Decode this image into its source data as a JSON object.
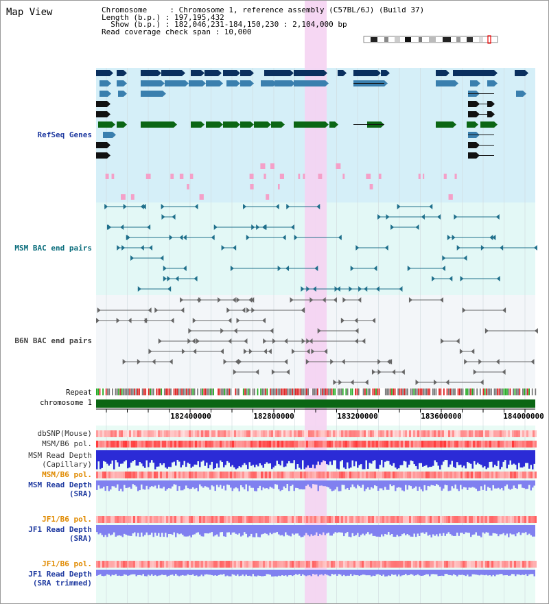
{
  "page": {
    "title": "Map View"
  },
  "info": {
    "chromosome_line": "Chromosome     : Chromosome 1, reference assembly (C57BL/6J) (Build 37)",
    "length_line": "Length (b.p.) : 197,195,432",
    "show_line": "  Show (b.p.) : 182,046,231-184,150,230 : 2,104,000 bp",
    "coverage_line": "Read coverage check span : 10,000"
  },
  "tracks": {
    "refseq": "RefSeq Genes",
    "msm_bac": "MSM BAC end pairs",
    "b6n_bac": "B6N BAC end pairs",
    "repeat": "Repeat",
    "chromosome": "chromosome 1",
    "dbsnp": "dbSNP(Mouse)",
    "msm_b6_pol_1": "MSM/B6 pol.",
    "msm_depth_cap_1": "MSM Read Depth",
    "msm_depth_cap_2": "(Capillary)",
    "msm_b6_pol_2": "MSM/B6 pol.",
    "msm_depth_sra_1": "MSM Read Depth",
    "msm_depth_sra_2": "(SRA)",
    "jf1_b6_pol_1": "JF1/B6 pol.",
    "jf1_depth_sra_1": "JF1 Read Depth",
    "jf1_depth_sra_2": "(SRA)",
    "jf1_b6_pol_2": "JF1/B6 pol.",
    "jf1_depth_trim_1": "JF1 Read Depth",
    "jf1_depth_trim_2": "(SRA trimmed)"
  },
  "axis": {
    "ticks": [
      "182400000",
      "182800000",
      "183200000",
      "183600000",
      "184000000"
    ]
  },
  "colors": {
    "refseq_bg": "#d5eff8",
    "msm_bac_bg": "#e3f8f6",
    "b6n_bac_bg": "#f3f6f9",
    "highlight": "#f5d3f2",
    "gene_dark": "#0a2f5e",
    "gene_mid": "#3a7fae",
    "gene_green": "#0b6614",
    "chromosome_bar": "#0b6614",
    "label_blue": "#1f3aa0",
    "label_teal": "#0a6d7c",
    "label_orange": "#e08a00",
    "depth_blue": "#2b2bd6",
    "depth_light": "#8080f0"
  }
}
